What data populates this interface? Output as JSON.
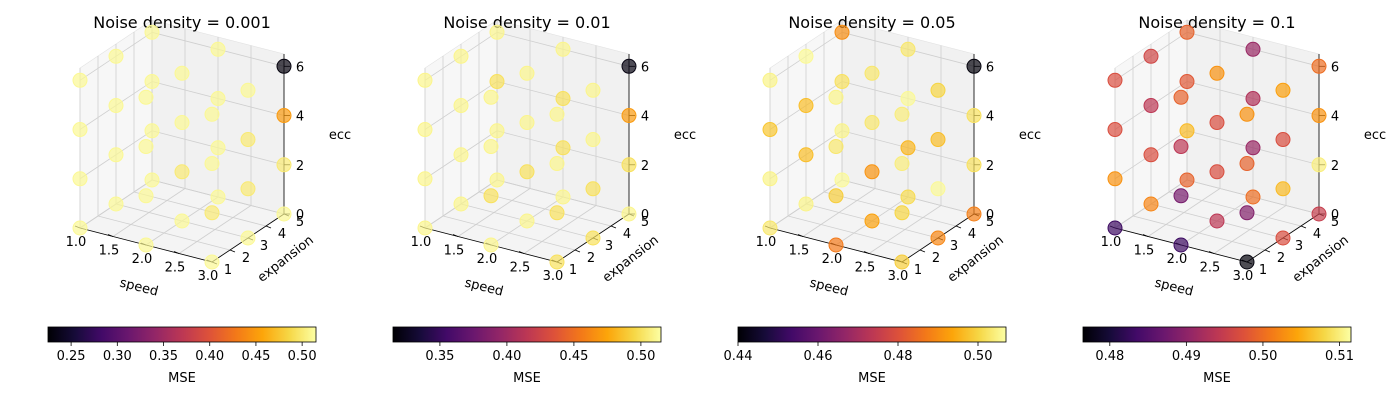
{
  "chart_data": [
    {
      "type": "scatter",
      "title": "Noise density = 0.001",
      "xlabel": "speed",
      "ylabel": "expansion",
      "zlabel": "ecc",
      "x_ticks": [
        "1.0",
        "1.5",
        "2.0",
        "2.5",
        "3.0"
      ],
      "y_ticks": [
        "1",
        "2",
        "3",
        "4",
        "5"
      ],
      "z_ticks": [
        "0",
        "2",
        "4",
        "6"
      ],
      "xlim": [
        1,
        3
      ],
      "ylim": [
        1,
        5
      ],
      "zlim": [
        0,
        6.5
      ],
      "colorbar": {
        "label": "MSE",
        "range": [
          0.225,
          0.515
        ],
        "ticks": [
          "0.25",
          "0.30",
          "0.35",
          "0.40",
          "0.45",
          "0.50"
        ],
        "tick_values": [
          0.25,
          0.3,
          0.35,
          0.4,
          0.45,
          0.5
        ],
        "colormap": "inferno"
      },
      "points": [
        {
          "x": 1,
          "y": 1,
          "z": 0,
          "mse": 0.51
        },
        {
          "x": 1,
          "y": 1,
          "z": 2,
          "mse": 0.51
        },
        {
          "x": 1,
          "y": 1,
          "z": 4,
          "mse": 0.51
        },
        {
          "x": 1,
          "y": 1,
          "z": 6,
          "mse": 0.51
        },
        {
          "x": 1,
          "y": 3,
          "z": 0,
          "mse": 0.51
        },
        {
          "x": 1,
          "y": 3,
          "z": 2,
          "mse": 0.51
        },
        {
          "x": 1,
          "y": 3,
          "z": 4,
          "mse": 0.51
        },
        {
          "x": 1,
          "y": 3,
          "z": 6,
          "mse": 0.51
        },
        {
          "x": 1,
          "y": 5,
          "z": 0,
          "mse": 0.51
        },
        {
          "x": 1,
          "y": 5,
          "z": 2,
          "mse": 0.51
        },
        {
          "x": 1,
          "y": 5,
          "z": 4,
          "mse": 0.51
        },
        {
          "x": 1,
          "y": 5,
          "z": 6,
          "mse": 0.51
        },
        {
          "x": 2,
          "y": 1,
          "z": 0,
          "mse": 0.51
        },
        {
          "x": 2,
          "y": 1,
          "z": 2,
          "mse": 0.51
        },
        {
          "x": 2,
          "y": 1,
          "z": 4,
          "mse": 0.51
        },
        {
          "x": 2,
          "y": 1,
          "z": 6,
          "mse": 0.51
        },
        {
          "x": 2,
          "y": 3,
          "z": 0,
          "mse": 0.51
        },
        {
          "x": 2,
          "y": 3,
          "z": 2,
          "mse": 0.5
        },
        {
          "x": 2,
          "y": 3,
          "z": 4,
          "mse": 0.51
        },
        {
          "x": 2,
          "y": 3,
          "z": 6,
          "mse": 0.51
        },
        {
          "x": 2,
          "y": 5,
          "z": 0,
          "mse": 0.51
        },
        {
          "x": 2,
          "y": 5,
          "z": 2,
          "mse": 0.51
        },
        {
          "x": 2,
          "y": 5,
          "z": 4,
          "mse": 0.51
        },
        {
          "x": 2,
          "y": 5,
          "z": 6,
          "mse": 0.51
        },
        {
          "x": 3,
          "y": 1,
          "z": 0,
          "mse": 0.51
        },
        {
          "x": 3,
          "y": 1,
          "z": 2,
          "mse": 0.5
        },
        {
          "x": 3,
          "y": 1,
          "z": 4,
          "mse": 0.51
        },
        {
          "x": 3,
          "y": 1,
          "z": 6,
          "mse": 0.51
        },
        {
          "x": 3,
          "y": 3,
          "z": 0,
          "mse": 0.51
        },
        {
          "x": 3,
          "y": 3,
          "z": 2,
          "mse": 0.5
        },
        {
          "x": 3,
          "y": 3,
          "z": 4,
          "mse": 0.5
        },
        {
          "x": 3,
          "y": 3,
          "z": 6,
          "mse": 0.51
        },
        {
          "x": 3,
          "y": 5,
          "z": 0,
          "mse": 0.51
        },
        {
          "x": 3,
          "y": 5,
          "z": 2,
          "mse": 0.5
        },
        {
          "x": 3,
          "y": 5,
          "z": 4,
          "mse": 0.45
        },
        {
          "x": 3,
          "y": 5,
          "z": 6,
          "mse": 0.23
        }
      ]
    },
    {
      "type": "scatter",
      "title": "Noise density = 0.01",
      "xlabel": "speed",
      "ylabel": "expansion",
      "zlabel": "ecc",
      "x_ticks": [
        "1.0",
        "1.5",
        "2.0",
        "2.5",
        "3.0"
      ],
      "y_ticks": [
        "1",
        "2",
        "3",
        "4",
        "5"
      ],
      "z_ticks": [
        "0",
        "2",
        "4",
        "6"
      ],
      "xlim": [
        1,
        3
      ],
      "ylim": [
        1,
        5
      ],
      "zlim": [
        0,
        6.5
      ],
      "colorbar": {
        "label": "MSE",
        "range": [
          0.315,
          0.515
        ],
        "ticks": [
          "0.35",
          "0.40",
          "0.45",
          "0.50"
        ],
        "tick_values": [
          0.35,
          0.4,
          0.45,
          0.5
        ],
        "colormap": "inferno"
      },
      "points": [
        {
          "x": 1,
          "y": 1,
          "z": 0,
          "mse": 0.51
        },
        {
          "x": 1,
          "y": 1,
          "z": 2,
          "mse": 0.51
        },
        {
          "x": 1,
          "y": 1,
          "z": 4,
          "mse": 0.51
        },
        {
          "x": 1,
          "y": 1,
          "z": 6,
          "mse": 0.51
        },
        {
          "x": 1,
          "y": 3,
          "z": 0,
          "mse": 0.51
        },
        {
          "x": 1,
          "y": 3,
          "z": 2,
          "mse": 0.51
        },
        {
          "x": 1,
          "y": 3,
          "z": 4,
          "mse": 0.51
        },
        {
          "x": 1,
          "y": 3,
          "z": 6,
          "mse": 0.51
        },
        {
          "x": 1,
          "y": 5,
          "z": 0,
          "mse": 0.51
        },
        {
          "x": 1,
          "y": 5,
          "z": 2,
          "mse": 0.51
        },
        {
          "x": 1,
          "y": 5,
          "z": 4,
          "mse": 0.5
        },
        {
          "x": 1,
          "y": 5,
          "z": 6,
          "mse": 0.51
        },
        {
          "x": 2,
          "y": 1,
          "z": 0,
          "mse": 0.51
        },
        {
          "x": 2,
          "y": 1,
          "z": 2,
          "mse": 0.5
        },
        {
          "x": 2,
          "y": 1,
          "z": 4,
          "mse": 0.51
        },
        {
          "x": 2,
          "y": 1,
          "z": 6,
          "mse": 0.51
        },
        {
          "x": 2,
          "y": 3,
          "z": 0,
          "mse": 0.51
        },
        {
          "x": 2,
          "y": 3,
          "z": 2,
          "mse": 0.5
        },
        {
          "x": 2,
          "y": 3,
          "z": 4,
          "mse": 0.51
        },
        {
          "x": 2,
          "y": 3,
          "z": 6,
          "mse": 0.51
        },
        {
          "x": 2,
          "y": 5,
          "z": 0,
          "mse": 0.51
        },
        {
          "x": 2,
          "y": 5,
          "z": 2,
          "mse": 0.5
        },
        {
          "x": 2,
          "y": 5,
          "z": 4,
          "mse": 0.5
        },
        {
          "x": 2,
          "y": 5,
          "z": 6,
          "mse": 0.51
        },
        {
          "x": 3,
          "y": 1,
          "z": 0,
          "mse": 0.5
        },
        {
          "x": 3,
          "y": 1,
          "z": 2,
          "mse": 0.5
        },
        {
          "x": 3,
          "y": 1,
          "z": 4,
          "mse": 0.51
        },
        {
          "x": 3,
          "y": 1,
          "z": 6,
          "mse": 0.51
        },
        {
          "x": 3,
          "y": 3,
          "z": 0,
          "mse": 0.5
        },
        {
          "x": 3,
          "y": 3,
          "z": 2,
          "mse": 0.5
        },
        {
          "x": 3,
          "y": 3,
          "z": 4,
          "mse": 0.51
        },
        {
          "x": 3,
          "y": 3,
          "z": 6,
          "mse": 0.51
        },
        {
          "x": 3,
          "y": 5,
          "z": 0,
          "mse": 0.51
        },
        {
          "x": 3,
          "y": 5,
          "z": 2,
          "mse": 0.5
        },
        {
          "x": 3,
          "y": 5,
          "z": 4,
          "mse": 0.47
        },
        {
          "x": 3,
          "y": 5,
          "z": 6,
          "mse": 0.32
        }
      ]
    },
    {
      "type": "scatter",
      "title": "Noise density = 0.05",
      "xlabel": "speed",
      "ylabel": "expansion",
      "zlabel": "ecc",
      "x_ticks": [
        "1.0",
        "1.5",
        "2.0",
        "2.5",
        "3.0"
      ],
      "y_ticks": [
        "1",
        "2",
        "3",
        "4",
        "5"
      ],
      "z_ticks": [
        "0",
        "2",
        "4",
        "6"
      ],
      "xlim": [
        1,
        3
      ],
      "ylim": [
        1,
        5
      ],
      "zlim": [
        0,
        6.5
      ],
      "colorbar": {
        "label": "MSE",
        "range": [
          0.44,
          0.507
        ],
        "ticks": [
          "0.44",
          "0.46",
          "0.48",
          "0.50"
        ],
        "tick_values": [
          0.44,
          0.46,
          0.48,
          0.5
        ],
        "colormap": "inferno"
      },
      "points": [
        {
          "x": 1,
          "y": 1,
          "z": 0,
          "mse": 0.503
        },
        {
          "x": 1,
          "y": 1,
          "z": 2,
          "mse": 0.505
        },
        {
          "x": 1,
          "y": 1,
          "z": 4,
          "mse": 0.498
        },
        {
          "x": 1,
          "y": 1,
          "z": 6,
          "mse": 0.505
        },
        {
          "x": 1,
          "y": 3,
          "z": 0,
          "mse": 0.505
        },
        {
          "x": 1,
          "y": 3,
          "z": 2,
          "mse": 0.497
        },
        {
          "x": 1,
          "y": 3,
          "z": 4,
          "mse": 0.497
        },
        {
          "x": 1,
          "y": 3,
          "z": 6,
          "mse": 0.506
        },
        {
          "x": 1,
          "y": 5,
          "z": 0,
          "mse": 0.506
        },
        {
          "x": 1,
          "y": 5,
          "z": 2,
          "mse": 0.505
        },
        {
          "x": 1,
          "y": 5,
          "z": 4,
          "mse": 0.502
        },
        {
          "x": 1,
          "y": 5,
          "z": 6,
          "mse": 0.49
        },
        {
          "x": 2,
          "y": 1,
          "z": 0,
          "mse": 0.487
        },
        {
          "x": 2,
          "y": 1,
          "z": 2,
          "mse": 0.499
        },
        {
          "x": 2,
          "y": 1,
          "z": 4,
          "mse": 0.503
        },
        {
          "x": 2,
          "y": 1,
          "z": 6,
          "mse": 0.505
        },
        {
          "x": 2,
          "y": 3,
          "z": 0,
          "mse": 0.493
        },
        {
          "x": 2,
          "y": 3,
          "z": 2,
          "mse": 0.491
        },
        {
          "x": 2,
          "y": 3,
          "z": 4,
          "mse": 0.503
        },
        {
          "x": 2,
          "y": 3,
          "z": 6,
          "mse": 0.503
        },
        {
          "x": 2,
          "y": 5,
          "z": 0,
          "mse": 0.501
        },
        {
          "x": 2,
          "y": 5,
          "z": 2,
          "mse": 0.496
        },
        {
          "x": 2,
          "y": 5,
          "z": 4,
          "mse": 0.506
        },
        {
          "x": 2,
          "y": 5,
          "z": 6,
          "mse": 0.503
        },
        {
          "x": 3,
          "y": 1,
          "z": 0,
          "mse": 0.499
        },
        {
          "x": 3,
          "y": 1,
          "z": 2,
          "mse": 0.5
        },
        {
          "x": 3,
          "y": 1,
          "z": 4,
          "mse": 0.504
        },
        {
          "x": 3,
          "y": 1,
          "z": 6,
          "mse": 0.504
        },
        {
          "x": 3,
          "y": 3,
          "z": 0,
          "mse": 0.489
        },
        {
          "x": 3,
          "y": 3,
          "z": 2,
          "mse": 0.506
        },
        {
          "x": 3,
          "y": 3,
          "z": 4,
          "mse": 0.497
        },
        {
          "x": 3,
          "y": 3,
          "z": 6,
          "mse": 0.5
        },
        {
          "x": 3,
          "y": 5,
          "z": 0,
          "mse": 0.488
        },
        {
          "x": 3,
          "y": 5,
          "z": 2,
          "mse": 0.502
        },
        {
          "x": 3,
          "y": 5,
          "z": 4,
          "mse": 0.502
        },
        {
          "x": 3,
          "y": 5,
          "z": 6,
          "mse": 0.441
        }
      ]
    },
    {
      "type": "scatter",
      "title": "Noise density = 0.1",
      "xlabel": "speed",
      "ylabel": "expansion",
      "zlabel": "ecc",
      "x_ticks": [
        "1.0",
        "1.5",
        "2.0",
        "2.5",
        "3.0"
      ],
      "y_ticks": [
        "1",
        "2",
        "3",
        "4",
        "5"
      ],
      "z_ticks": [
        "0",
        "2",
        "4",
        "6"
      ],
      "xlim": [
        1,
        3
      ],
      "ylim": [
        1,
        5
      ],
      "zlim": [
        0,
        6.5
      ],
      "colorbar": {
        "label": "MSE",
        "range": [
          0.4765,
          0.5115
        ],
        "ticks": [
          "0.48",
          "0.49",
          "0.50",
          "0.51"
        ],
        "tick_values": [
          0.48,
          0.49,
          0.5,
          0.51
        ],
        "colormap": "inferno"
      },
      "points": [
        {
          "x": 1,
          "y": 1,
          "z": 0,
          "mse": 0.483
        },
        {
          "x": 1,
          "y": 1,
          "z": 2,
          "mse": 0.503
        },
        {
          "x": 1,
          "y": 1,
          "z": 4,
          "mse": 0.497
        },
        {
          "x": 1,
          "y": 1,
          "z": 6,
          "mse": 0.497
        },
        {
          "x": 1,
          "y": 3,
          "z": 0,
          "mse": 0.502
        },
        {
          "x": 1,
          "y": 3,
          "z": 2,
          "mse": 0.497
        },
        {
          "x": 1,
          "y": 3,
          "z": 4,
          "mse": 0.494
        },
        {
          "x": 1,
          "y": 3,
          "z": 6,
          "mse": 0.496
        },
        {
          "x": 1,
          "y": 5,
          "z": 0,
          "mse": 0.499
        },
        {
          "x": 1,
          "y": 5,
          "z": 2,
          "mse": 0.506
        },
        {
          "x": 1,
          "y": 5,
          "z": 4,
          "mse": 0.498
        },
        {
          "x": 1,
          "y": 5,
          "z": 6,
          "mse": 0.499
        },
        {
          "x": 2,
          "y": 1,
          "z": 0,
          "mse": 0.483
        },
        {
          "x": 2,
          "y": 1,
          "z": 2,
          "mse": 0.488
        },
        {
          "x": 2,
          "y": 1,
          "z": 4,
          "mse": 0.494
        },
        {
          "x": 2,
          "y": 1,
          "z": 6,
          "mse": 0.499
        },
        {
          "x": 2,
          "y": 3,
          "z": 0,
          "mse": 0.494
        },
        {
          "x": 2,
          "y": 3,
          "z": 2,
          "mse": 0.497
        },
        {
          "x": 2,
          "y": 3,
          "z": 4,
          "mse": 0.497
        },
        {
          "x": 2,
          "y": 3,
          "z": 6,
          "mse": 0.503
        },
        {
          "x": 2,
          "y": 5,
          "z": 0,
          "mse": 0.5
        },
        {
          "x": 2,
          "y": 5,
          "z": 2,
          "mse": 0.491
        },
        {
          "x": 2,
          "y": 5,
          "z": 4,
          "mse": 0.493
        },
        {
          "x": 2,
          "y": 5,
          "z": 6,
          "mse": 0.491
        },
        {
          "x": 3,
          "y": 1,
          "z": 0,
          "mse": 0.477
        },
        {
          "x": 3,
          "y": 1,
          "z": 2,
          "mse": 0.489
        },
        {
          "x": 3,
          "y": 1,
          "z": 4,
          "mse": 0.499
        },
        {
          "x": 3,
          "y": 1,
          "z": 6,
          "mse": 0.503
        },
        {
          "x": 3,
          "y": 3,
          "z": 0,
          "mse": 0.497
        },
        {
          "x": 3,
          "y": 3,
          "z": 2,
          "mse": 0.506
        },
        {
          "x": 3,
          "y": 3,
          "z": 4,
          "mse": 0.497
        },
        {
          "x": 3,
          "y": 3,
          "z": 6,
          "mse": 0.504
        },
        {
          "x": 3,
          "y": 5,
          "z": 0,
          "mse": 0.495
        },
        {
          "x": 3,
          "y": 5,
          "z": 2,
          "mse": 0.51
        },
        {
          "x": 3,
          "y": 5,
          "z": 4,
          "mse": 0.503
        },
        {
          "x": 3,
          "y": 5,
          "z": 6,
          "mse": 0.5
        }
      ]
    }
  ]
}
